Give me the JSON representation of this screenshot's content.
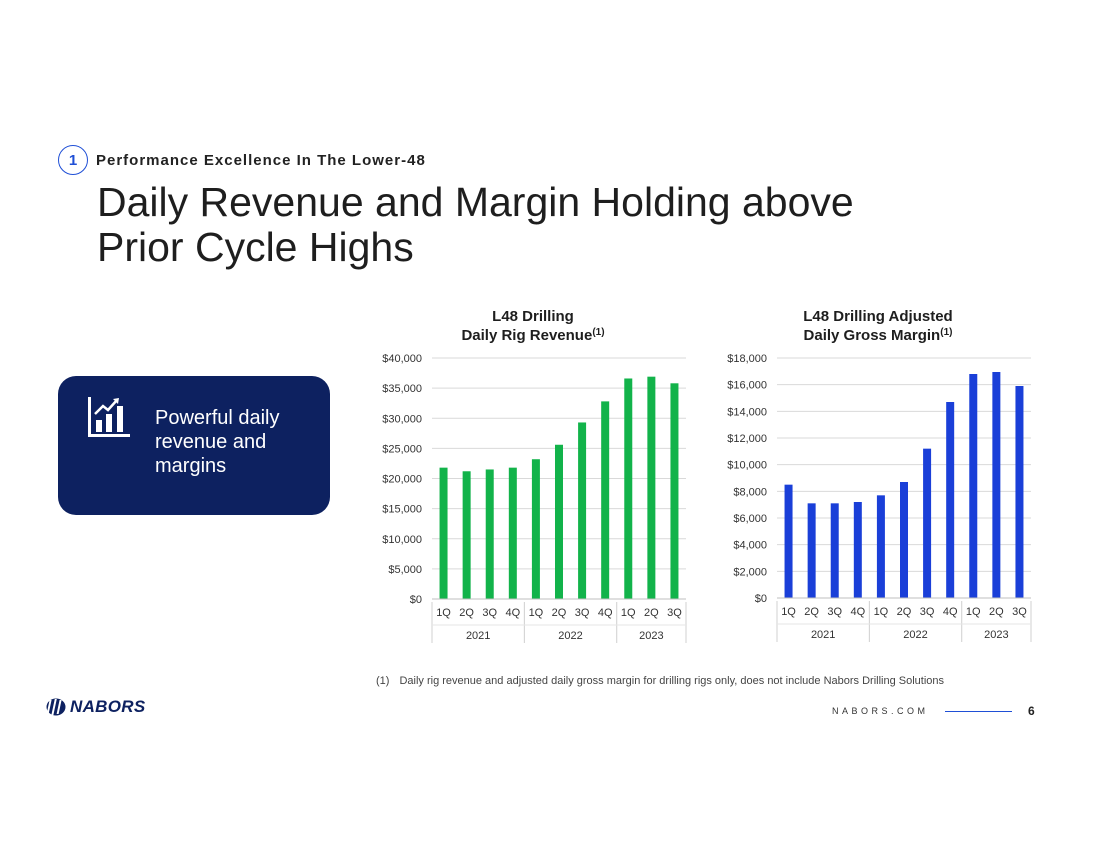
{
  "section": {
    "number": "1",
    "label": "Performance Excellence In The Lower-48"
  },
  "title": "Daily Revenue and Margin Holding above Prior Cycle Highs",
  "callout": {
    "text": "Powerful daily revenue and margins",
    "icon": "chart-growth-icon"
  },
  "chart_data": [
    {
      "type": "bar",
      "title_line1": "L48 Drilling",
      "title_line2": "Daily Rig Revenue",
      "title_sup": "(1)",
      "categories": [
        "1Q",
        "2Q",
        "3Q",
        "4Q",
        "1Q",
        "2Q",
        "3Q",
        "4Q",
        "1Q",
        "2Q",
        "3Q"
      ],
      "groups": [
        {
          "label": "2021",
          "count": 4
        },
        {
          "label": "2022",
          "count": 4
        },
        {
          "label": "2023",
          "count": 3
        }
      ],
      "values": [
        21800,
        21200,
        21500,
        21800,
        23200,
        25600,
        29300,
        32800,
        36600,
        36900,
        35800
      ],
      "ylim": [
        0,
        40000
      ],
      "yticks": [
        "$0",
        "$5,000",
        "$10,000",
        "$15,000",
        "$20,000",
        "$25,000",
        "$30,000",
        "$35,000",
        "$40,000"
      ],
      "grid": true,
      "color": "#12b34a"
    },
    {
      "type": "bar",
      "title_line1": "L48 Drilling Adjusted",
      "title_line2": "Daily Gross Margin",
      "title_sup": "(1)",
      "categories": [
        "1Q",
        "2Q",
        "3Q",
        "4Q",
        "1Q",
        "2Q",
        "3Q",
        "4Q",
        "1Q",
        "2Q",
        "3Q"
      ],
      "groups": [
        {
          "label": "2021",
          "count": 4
        },
        {
          "label": "2022",
          "count": 4
        },
        {
          "label": "2023",
          "count": 3
        }
      ],
      "values": [
        8500,
        7100,
        7100,
        7200,
        7700,
        8700,
        11200,
        14700,
        16800,
        16950,
        15900
      ],
      "ylim": [
        0,
        18000
      ],
      "yticks": [
        "$0",
        "$2,000",
        "$4,000",
        "$6,000",
        "$8,000",
        "$10,000",
        "$12,000",
        "$14,000",
        "$16,000",
        "$18,000"
      ],
      "grid": true,
      "color": "#1a3fd8"
    }
  ],
  "footnote": {
    "mark": "(1)",
    "text": "Daily rig revenue and adjusted daily gross margin for drilling rigs only, does not include Nabors Drilling Solutions"
  },
  "footer": {
    "logo_text": "NABORS",
    "site": "NABORS.COM",
    "page": "6"
  }
}
